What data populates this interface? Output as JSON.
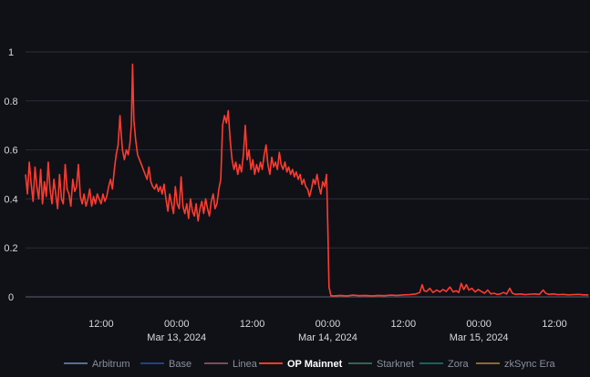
{
  "chart_data": {
    "type": "line",
    "title": "",
    "xlabel": "",
    "ylabel": "",
    "ylim": [
      0,
      1
    ],
    "y_ticks": [
      "0",
      "0.2",
      "0.4",
      "0.6",
      "0.8",
      "1"
    ],
    "x_range_hours": [
      -18,
      56
    ],
    "x_ticks": [
      {
        "label": "12:00",
        "sublabel": "",
        "hour": -12
      },
      {
        "label": "00:00",
        "sublabel": "Mar 13, 2024",
        "hour": 0
      },
      {
        "label": "12:00",
        "sublabel": "",
        "hour": 12
      },
      {
        "label": "00:00",
        "sublabel": "Mar 14, 2024",
        "hour": 24
      },
      {
        "label": "12:00",
        "sublabel": "",
        "hour": 36
      },
      {
        "label": "00:00",
        "sublabel": "Mar 15, 2024",
        "hour": 48
      },
      {
        "label": "12:00",
        "sublabel": "",
        "hour": 60
      }
    ],
    "grid": true,
    "legend_position": "bottom",
    "series": [
      {
        "name": "Arbitrum",
        "color": "#5b6e8c",
        "visible": false,
        "points": []
      },
      {
        "name": "Base",
        "color": "#27417f",
        "visible": false,
        "points": []
      },
      {
        "name": "Linea",
        "color": "#7a4d58",
        "visible": false,
        "points": []
      },
      {
        "name": "OP Mainnet",
        "color": "#ff3b30",
        "visible": true,
        "points": [
          [
            -24.0,
            0.5
          ],
          [
            -23.7,
            0.42
          ],
          [
            -23.4,
            0.55
          ],
          [
            -23.1,
            0.46
          ],
          [
            -22.8,
            0.39
          ],
          [
            -22.5,
            0.53
          ],
          [
            -22.2,
            0.45
          ],
          [
            -21.9,
            0.4
          ],
          [
            -21.6,
            0.52
          ],
          [
            -21.3,
            0.38
          ],
          [
            -21.0,
            0.47
          ],
          [
            -20.7,
            0.41
          ],
          [
            -20.4,
            0.55
          ],
          [
            -20.1,
            0.44
          ],
          [
            -19.8,
            0.38
          ],
          [
            -19.5,
            0.48
          ],
          [
            -19.2,
            0.42
          ],
          [
            -18.9,
            0.36
          ],
          [
            -18.6,
            0.5
          ],
          [
            -18.3,
            0.4
          ],
          [
            -18.0,
            0.38
          ],
          [
            -17.7,
            0.54
          ],
          [
            -17.4,
            0.44
          ],
          [
            -17.1,
            0.42
          ],
          [
            -16.8,
            0.37
          ],
          [
            -16.5,
            0.48
          ],
          [
            -16.2,
            0.43
          ],
          [
            -15.9,
            0.45
          ],
          [
            -15.6,
            0.54
          ],
          [
            -15.3,
            0.41
          ],
          [
            -15.0,
            0.38
          ],
          [
            -14.7,
            0.42
          ],
          [
            -14.4,
            0.37
          ],
          [
            -14.1,
            0.4
          ],
          [
            -13.8,
            0.44
          ],
          [
            -13.5,
            0.37
          ],
          [
            -13.2,
            0.41
          ],
          [
            -12.9,
            0.38
          ],
          [
            -12.6,
            0.42
          ],
          [
            -12.3,
            0.4
          ],
          [
            -12.0,
            0.38
          ],
          [
            -11.7,
            0.42
          ],
          [
            -11.4,
            0.39
          ],
          [
            -11.1,
            0.41
          ],
          [
            -10.8,
            0.45
          ],
          [
            -10.5,
            0.48
          ],
          [
            -10.2,
            0.44
          ],
          [
            -9.9,
            0.52
          ],
          [
            -9.6,
            0.58
          ],
          [
            -9.3,
            0.62
          ],
          [
            -9.0,
            0.74
          ],
          [
            -8.8,
            0.66
          ],
          [
            -8.6,
            0.6
          ],
          [
            -8.3,
            0.56
          ],
          [
            -8.0,
            0.6
          ],
          [
            -7.7,
            0.58
          ],
          [
            -7.4,
            0.63
          ],
          [
            -7.2,
            0.7
          ],
          [
            -7.0,
            0.95
          ],
          [
            -6.8,
            0.72
          ],
          [
            -6.5,
            0.64
          ],
          [
            -6.2,
            0.58
          ],
          [
            -5.9,
            0.56
          ],
          [
            -5.6,
            0.54
          ],
          [
            -5.3,
            0.52
          ],
          [
            -5.0,
            0.5
          ],
          [
            -4.7,
            0.48
          ],
          [
            -4.4,
            0.53
          ],
          [
            -4.1,
            0.47
          ],
          [
            -3.8,
            0.45
          ],
          [
            -3.5,
            0.44
          ],
          [
            -3.2,
            0.46
          ],
          [
            -2.9,
            0.43
          ],
          [
            -2.6,
            0.45
          ],
          [
            -2.3,
            0.42
          ],
          [
            -2.0,
            0.46
          ],
          [
            -1.7,
            0.4
          ],
          [
            -1.4,
            0.35
          ],
          [
            -1.1,
            0.42
          ],
          [
            -0.8,
            0.38
          ],
          [
            -0.5,
            0.34
          ],
          [
            -0.2,
            0.45
          ],
          [
            0.1,
            0.38
          ],
          [
            0.4,
            0.36
          ],
          [
            0.7,
            0.49
          ],
          [
            1.0,
            0.37
          ],
          [
            1.3,
            0.34
          ],
          [
            1.6,
            0.38
          ],
          [
            1.9,
            0.32
          ],
          [
            2.2,
            0.4
          ],
          [
            2.5,
            0.35
          ],
          [
            2.8,
            0.33
          ],
          [
            3.1,
            0.38
          ],
          [
            3.4,
            0.31
          ],
          [
            3.7,
            0.36
          ],
          [
            4.0,
            0.39
          ],
          [
            4.3,
            0.34
          ],
          [
            4.6,
            0.4
          ],
          [
            4.9,
            0.36
          ],
          [
            5.2,
            0.33
          ],
          [
            5.5,
            0.39
          ],
          [
            5.8,
            0.42
          ],
          [
            6.1,
            0.36
          ],
          [
            6.4,
            0.38
          ],
          [
            6.7,
            0.44
          ],
          [
            7.0,
            0.48
          ],
          [
            7.3,
            0.7
          ],
          [
            7.6,
            0.74
          ],
          [
            7.9,
            0.71
          ],
          [
            8.2,
            0.76
          ],
          [
            8.5,
            0.64
          ],
          [
            8.8,
            0.56
          ],
          [
            9.1,
            0.52
          ],
          [
            9.4,
            0.55
          ],
          [
            9.7,
            0.5
          ],
          [
            10.0,
            0.54
          ],
          [
            10.3,
            0.51
          ],
          [
            10.6,
            0.58
          ],
          [
            10.9,
            0.7
          ],
          [
            11.2,
            0.56
          ],
          [
            11.5,
            0.6
          ],
          [
            11.8,
            0.52
          ],
          [
            12.1,
            0.56
          ],
          [
            12.4,
            0.5
          ],
          [
            12.7,
            0.54
          ],
          [
            13.0,
            0.51
          ],
          [
            13.3,
            0.55
          ],
          [
            13.6,
            0.52
          ],
          [
            13.9,
            0.58
          ],
          [
            14.2,
            0.62
          ],
          [
            14.5,
            0.54
          ],
          [
            14.8,
            0.5
          ],
          [
            15.1,
            0.57
          ],
          [
            15.4,
            0.53
          ],
          [
            15.7,
            0.55
          ],
          [
            16.0,
            0.52
          ],
          [
            16.3,
            0.59
          ],
          [
            16.6,
            0.54
          ],
          [
            16.9,
            0.52
          ],
          [
            17.2,
            0.55
          ],
          [
            17.5,
            0.51
          ],
          [
            17.8,
            0.53
          ],
          [
            18.1,
            0.5
          ],
          [
            18.4,
            0.52
          ],
          [
            18.7,
            0.49
          ],
          [
            19.0,
            0.51
          ],
          [
            19.3,
            0.48
          ],
          [
            19.6,
            0.5
          ],
          [
            19.9,
            0.46
          ],
          [
            20.2,
            0.48
          ],
          [
            20.5,
            0.45
          ],
          [
            20.8,
            0.44
          ],
          [
            21.1,
            0.41
          ],
          [
            21.4,
            0.44
          ],
          [
            21.7,
            0.48
          ],
          [
            22.0,
            0.46
          ],
          [
            22.3,
            0.5
          ],
          [
            22.6,
            0.45
          ],
          [
            22.9,
            0.42
          ],
          [
            23.2,
            0.47
          ],
          [
            23.5,
            0.45
          ],
          [
            23.8,
            0.5
          ],
          [
            24.0,
            0.3
          ],
          [
            24.2,
            0.04
          ],
          [
            24.5,
            0.005
          ],
          [
            25.0,
            0.004
          ],
          [
            26.0,
            0.006
          ],
          [
            27.0,
            0.004
          ],
          [
            28.0,
            0.007
          ],
          [
            29.0,
            0.005
          ],
          [
            30.0,
            0.006
          ],
          [
            31.0,
            0.004
          ],
          [
            32.0,
            0.006
          ],
          [
            33.0,
            0.005
          ],
          [
            34.0,
            0.007
          ],
          [
            35.0,
            0.006
          ],
          [
            36.0,
            0.008
          ],
          [
            37.0,
            0.009
          ],
          [
            38.0,
            0.012
          ],
          [
            38.6,
            0.018
          ],
          [
            39.0,
            0.05
          ],
          [
            39.3,
            0.025
          ],
          [
            39.7,
            0.022
          ],
          [
            40.2,
            0.035
          ],
          [
            40.7,
            0.018
          ],
          [
            41.3,
            0.028
          ],
          [
            41.8,
            0.02
          ],
          [
            42.3,
            0.03
          ],
          [
            42.8,
            0.022
          ],
          [
            43.4,
            0.04
          ],
          [
            43.9,
            0.02
          ],
          [
            44.4,
            0.025
          ],
          [
            44.8,
            0.018
          ],
          [
            45.2,
            0.055
          ],
          [
            45.6,
            0.03
          ],
          [
            46.0,
            0.05
          ],
          [
            46.4,
            0.028
          ],
          [
            46.9,
            0.035
          ],
          [
            47.4,
            0.02
          ],
          [
            47.9,
            0.03
          ],
          [
            48.4,
            0.022
          ],
          [
            48.9,
            0.015
          ],
          [
            49.4,
            0.028
          ],
          [
            49.9,
            0.012
          ],
          [
            50.4,
            0.015
          ],
          [
            50.9,
            0.01
          ],
          [
            51.4,
            0.012
          ],
          [
            51.9,
            0.018
          ],
          [
            52.4,
            0.012
          ],
          [
            52.9,
            0.035
          ],
          [
            53.3,
            0.015
          ],
          [
            53.8,
            0.01
          ],
          [
            54.6,
            0.012
          ],
          [
            55.4,
            0.009
          ],
          [
            56.2,
            0.011
          ],
          [
            57.0,
            0.012
          ],
          [
            57.6,
            0.01
          ],
          [
            58.2,
            0.028
          ],
          [
            58.6,
            0.015
          ],
          [
            59.1,
            0.01
          ],
          [
            59.8,
            0.012
          ],
          [
            60.6,
            0.009
          ],
          [
            61.4,
            0.01
          ],
          [
            62.2,
            0.008
          ],
          [
            63.0,
            0.009
          ],
          [
            63.8,
            0.01
          ],
          [
            64.6,
            0.008
          ],
          [
            65.4,
            0.008
          ]
        ]
      },
      {
        "name": "Starknet",
        "color": "#2c6a4c",
        "visible": false,
        "points": []
      },
      {
        "name": "Zora",
        "color": "#1f5f59",
        "visible": false,
        "points": []
      },
      {
        "name": "zkSync Era",
        "color": "#8a6a2e",
        "visible": false,
        "points": []
      }
    ]
  }
}
